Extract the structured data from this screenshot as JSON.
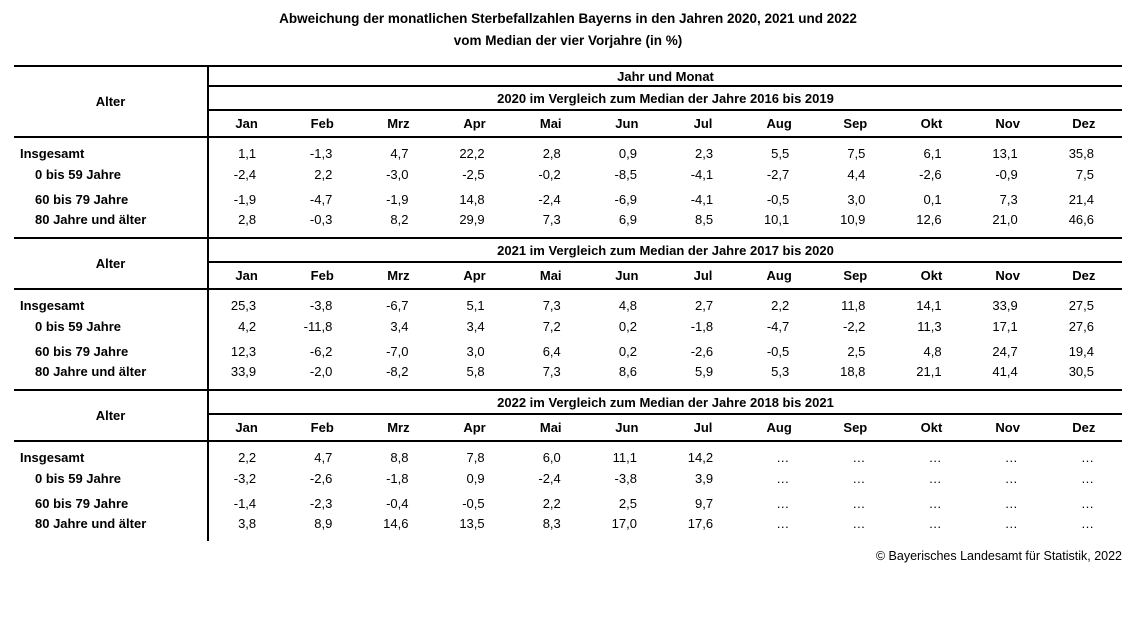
{
  "title": {
    "line1": "Abweichung der monatlichen Sterbefallzahlen Bayerns in den Jahren 2020, 2021 und 2022",
    "line2": "vom Median der vier Vorjahre (in %)"
  },
  "table": {
    "alter_label": "Alter",
    "jahr_und_monat_label": "Jahr und Monat",
    "months": [
      "Jan",
      "Feb",
      "Mrz",
      "Apr",
      "Mai",
      "Jun",
      "Jul",
      "Aug",
      "Sep",
      "Okt",
      "Nov",
      "Dez"
    ],
    "sections": [
      {
        "year_header": "2020 im Vergleich zum Median der Jahre 2016 bis 2019",
        "rows": [
          {
            "label": "Insgesamt",
            "indent": false,
            "values": [
              "1,1",
              "-1,3",
              "4,7",
              "22,2",
              "2,8",
              "0,9",
              "2,3",
              "5,5",
              "7,5",
              "6,1",
              "13,1",
              "35,8"
            ]
          },
          {
            "label": "0 bis 59 Jahre",
            "indent": true,
            "values": [
              "-2,4",
              "2,2",
              "-3,0",
              "-2,5",
              "-0,2",
              "-8,5",
              "-4,1",
              "-2,7",
              "4,4",
              "-2,6",
              "-0,9",
              "7,5"
            ]
          },
          {
            "label": "60 bis 79 Jahre",
            "indent": true,
            "values": [
              "-1,9",
              "-4,7",
              "-1,9",
              "14,8",
              "-2,4",
              "-6,9",
              "-4,1",
              "-0,5",
              "3,0",
              "0,1",
              "7,3",
              "21,4"
            ]
          },
          {
            "label": "80 Jahre und älter",
            "indent": true,
            "values": [
              "2,8",
              "-0,3",
              "8,2",
              "29,9",
              "7,3",
              "6,9",
              "8,5",
              "10,1",
              "10,9",
              "12,6",
              "21,0",
              "46,6"
            ]
          }
        ]
      },
      {
        "year_header": "2021 im Vergleich zum Median der Jahre 2017 bis 2020",
        "rows": [
          {
            "label": "Insgesamt",
            "indent": false,
            "values": [
              "25,3",
              "-3,8",
              "-6,7",
              "5,1",
              "7,3",
              "4,8",
              "2,7",
              "2,2",
              "11,8",
              "14,1",
              "33,9",
              "27,5"
            ]
          },
          {
            "label": "0 bis 59 Jahre",
            "indent": true,
            "values": [
              "4,2",
              "-11,8",
              "3,4",
              "3,4",
              "7,2",
              "0,2",
              "-1,8",
              "-4,7",
              "-2,2",
              "11,3",
              "17,1",
              "27,6"
            ]
          },
          {
            "label": "60 bis 79 Jahre",
            "indent": true,
            "values": [
              "12,3",
              "-6,2",
              "-7,0",
              "3,0",
              "6,4",
              "0,2",
              "-2,6",
              "-0,5",
              "2,5",
              "4,8",
              "24,7",
              "19,4"
            ]
          },
          {
            "label": "80 Jahre und älter",
            "indent": true,
            "values": [
              "33,9",
              "-2,0",
              "-8,2",
              "5,8",
              "7,3",
              "8,6",
              "5,9",
              "5,3",
              "18,8",
              "21,1",
              "41,4",
              "30,5"
            ]
          }
        ]
      },
      {
        "year_header": "2022 im Vergleich zum Median der Jahre 2018 bis 2021",
        "rows": [
          {
            "label": "Insgesamt",
            "indent": false,
            "values": [
              "2,2",
              "4,7",
              "8,8",
              "7,8",
              "6,0",
              "11,1",
              "14,2",
              "…",
              "…",
              "…",
              "…",
              "…"
            ]
          },
          {
            "label": "0 bis 59 Jahre",
            "indent": true,
            "values": [
              "-3,2",
              "-2,6",
              "-1,8",
              "0,9",
              "-2,4",
              "-3,8",
              "3,9",
              "…",
              "…",
              "…",
              "…",
              "…"
            ]
          },
          {
            "label": "60 bis 79 Jahre",
            "indent": true,
            "values": [
              "-1,4",
              "-2,3",
              "-0,4",
              "-0,5",
              "2,2",
              "2,5",
              "9,7",
              "…",
              "…",
              "…",
              "…",
              "…"
            ]
          },
          {
            "label": "80 Jahre und älter",
            "indent": true,
            "values": [
              "3,8",
              "8,9",
              "14,6",
              "13,5",
              "8,3",
              "17,0",
              "17,6",
              "…",
              "…",
              "…",
              "…",
              "…"
            ]
          }
        ]
      }
    ]
  },
  "footer": {
    "copyright": "© Bayerisches Landesamt für Statistik, 2022"
  }
}
